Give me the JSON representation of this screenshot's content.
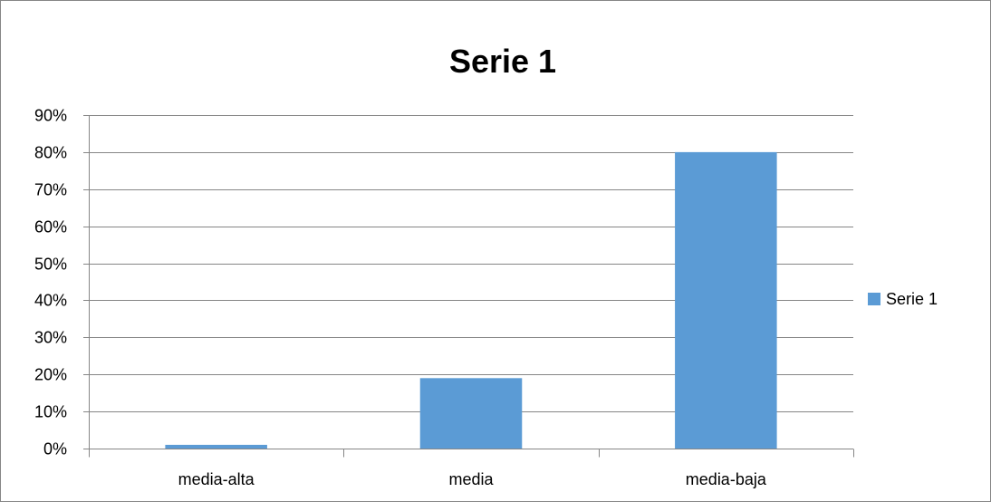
{
  "chart_data": {
    "type": "bar",
    "title": "Serie 1",
    "categories": [
      "media-alta",
      "media",
      "media-baja"
    ],
    "series": [
      {
        "name": "Serie 1",
        "values": [
          1,
          19,
          80
        ],
        "color": "#5B9BD5"
      }
    ],
    "ylim": [
      0,
      90
    ],
    "yticks": [
      "0%",
      "10%",
      "20%",
      "30%",
      "40%",
      "50%",
      "60%",
      "70%",
      "80%",
      "90%"
    ],
    "y_unit": "percent",
    "grid": true,
    "legend_position": "right",
    "gridline_color": "#868686"
  }
}
